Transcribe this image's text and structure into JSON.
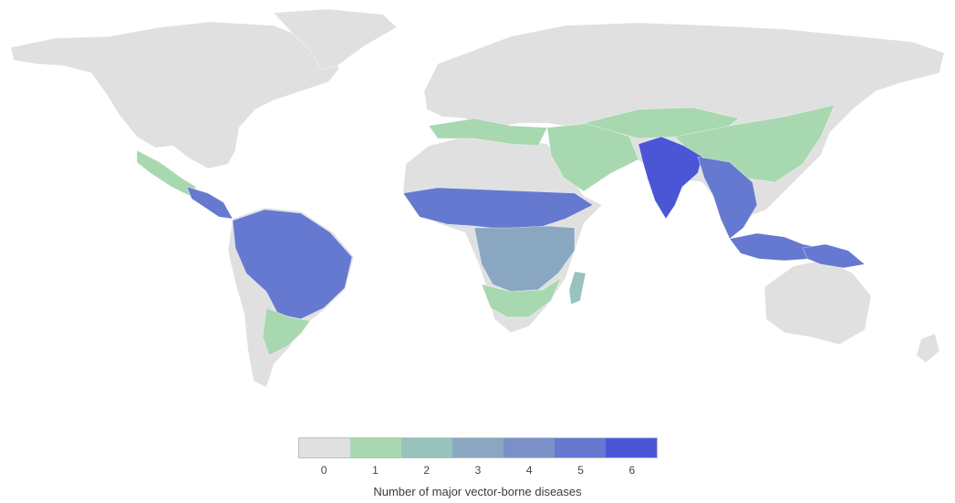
{
  "map": {
    "type": "choropleth",
    "subject": "world",
    "regions": {
      "land": {
        "level": 0
      },
      "central-america": {
        "level": 5
      },
      "mexico": {
        "level": 1
      },
      "south-america-north": {
        "level": 5
      },
      "south-america-south": {
        "level": 1
      },
      "sahel": {
        "level": 5
      },
      "africa-central": {
        "level": 3
      },
      "africa-south": {
        "level": 1
      },
      "madagascar": {
        "level": 2
      },
      "mediterranean": {
        "level": 1
      },
      "middle-east": {
        "level": 1
      },
      "central-asia": {
        "level": 1
      },
      "china": {
        "level": 1
      },
      "india": {
        "level": 6
      },
      "southeast-asia": {
        "level": 5
      },
      "indonesia": {
        "level": 5
      },
      "new-guinea": {
        "level": 5
      }
    }
  },
  "legend": {
    "title": "Number of major vector-borne diseases",
    "items": [
      {
        "label": "0",
        "color": "#e0e0e0"
      },
      {
        "label": "1",
        "color": "#a8d8b0"
      },
      {
        "label": "2",
        "color": "#97c3bd"
      },
      {
        "label": "3",
        "color": "#8aa7c2"
      },
      {
        "label": "4",
        "color": "#7b90c9"
      },
      {
        "label": "5",
        "color": "#6579d0"
      },
      {
        "label": "6",
        "color": "#4b56d6"
      }
    ]
  }
}
